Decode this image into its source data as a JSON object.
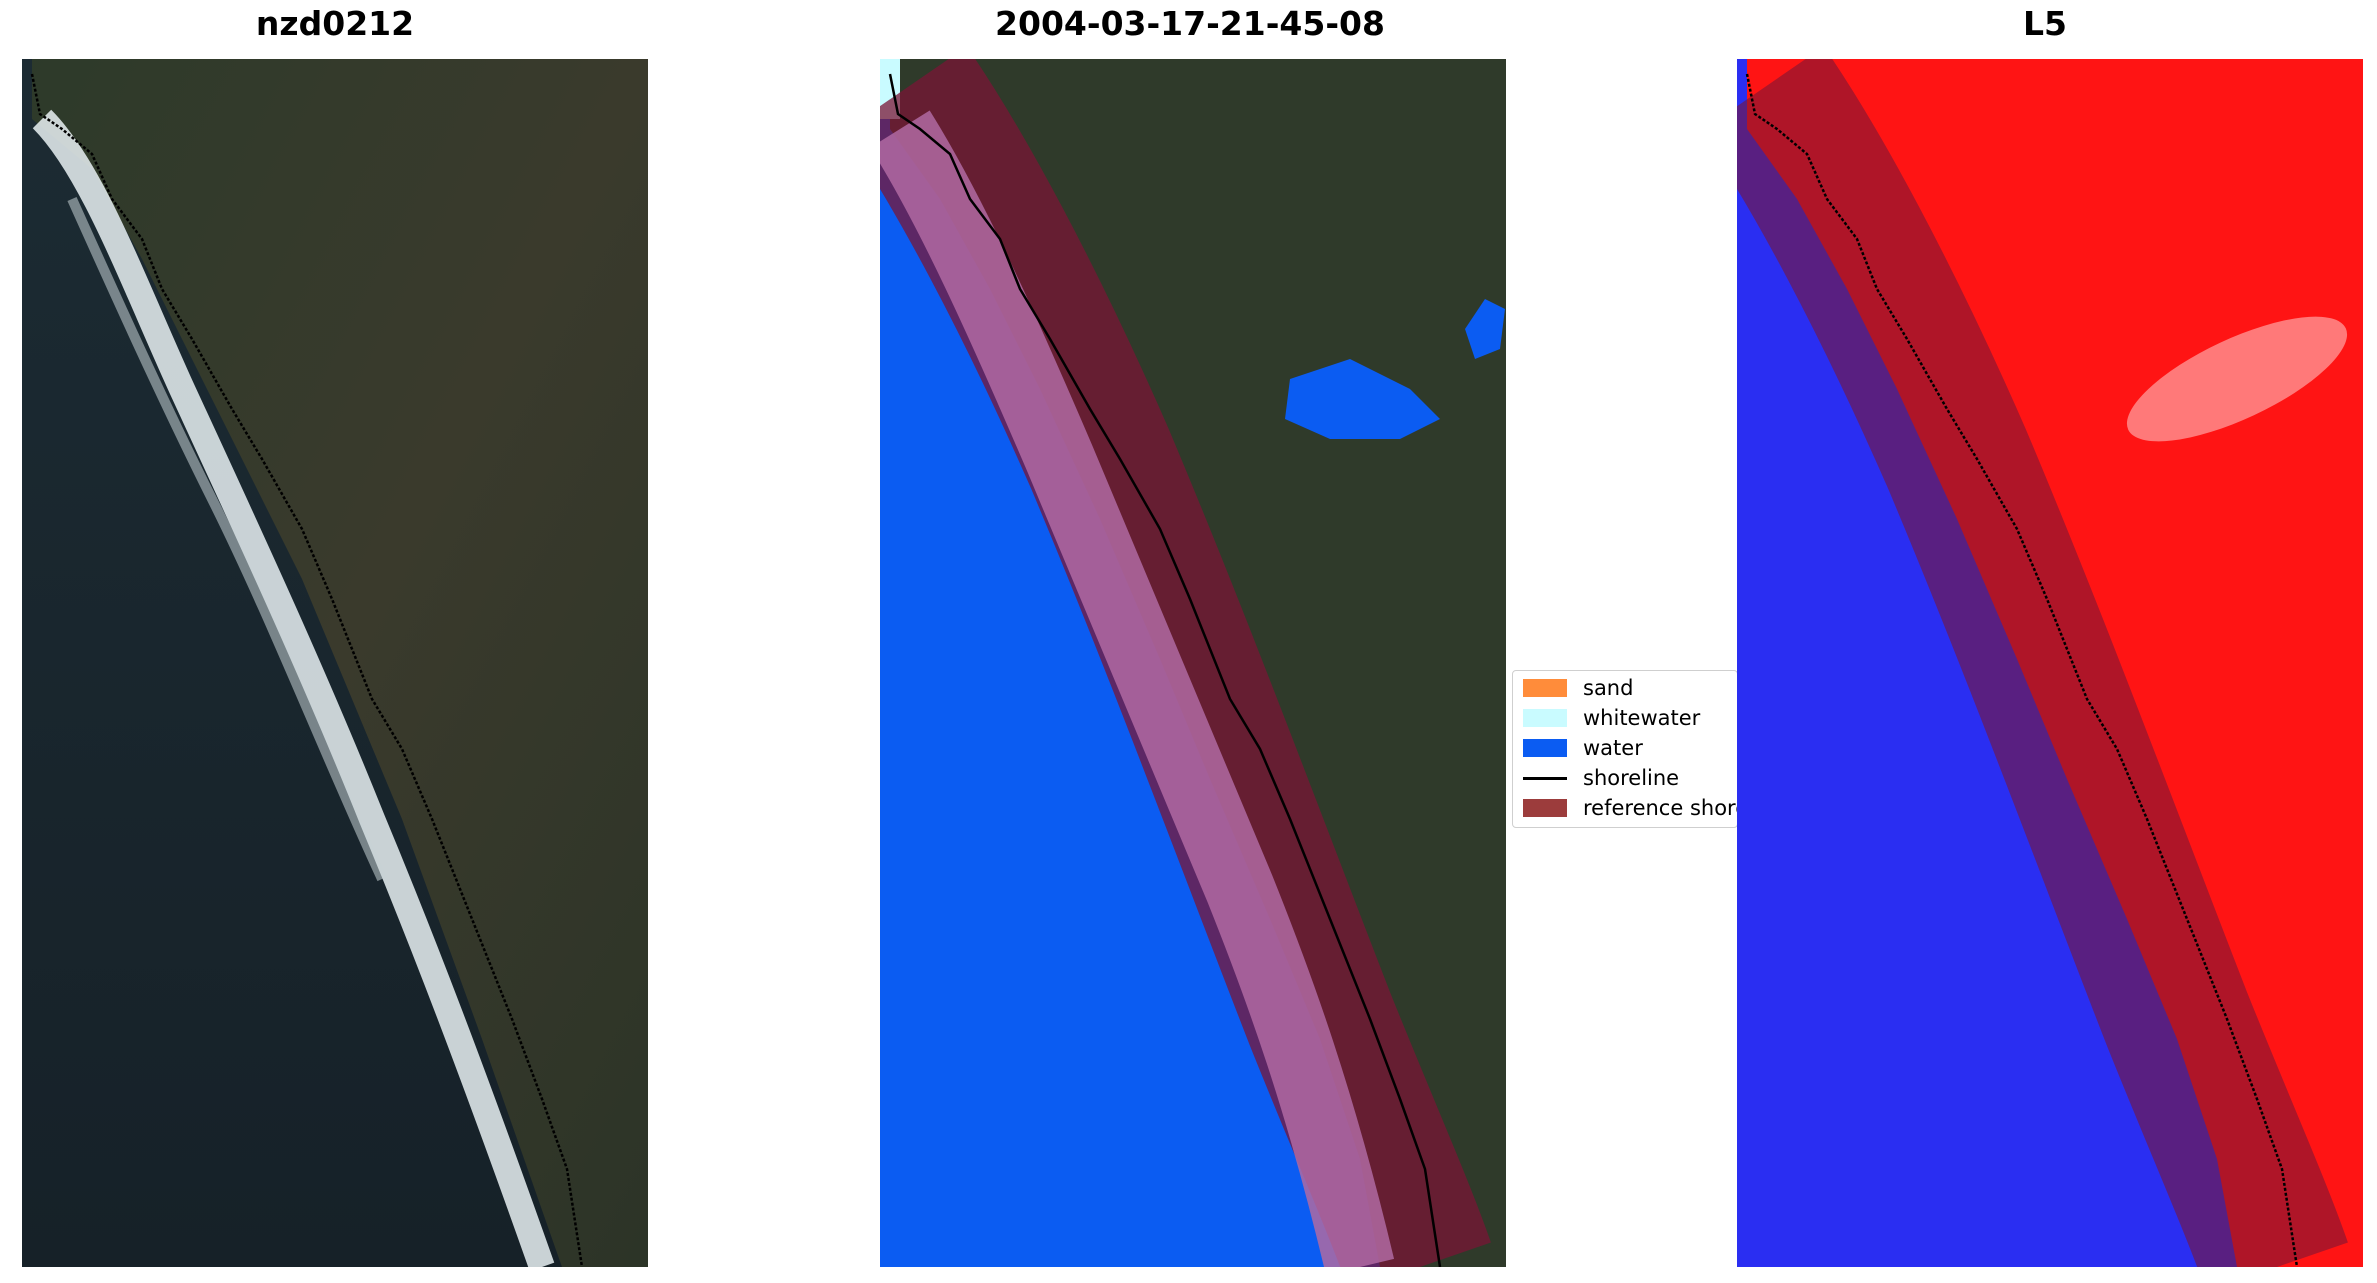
{
  "figure": {
    "panels": [
      {
        "title": "nzd0212"
      },
      {
        "title": "2004-03-17-21-45-08"
      },
      {
        "title": "L5"
      }
    ]
  },
  "legend": {
    "items": [
      {
        "label": "sand",
        "kind": "patch",
        "color": "#ff8c3a"
      },
      {
        "label": "whitewater",
        "kind": "patch",
        "color": "#c9fbff"
      },
      {
        "label": "water",
        "kind": "patch",
        "color": "#0b5cf2"
      },
      {
        "label": "shoreline",
        "kind": "line",
        "color": "#000000"
      },
      {
        "label": "reference shoreline buffer",
        "kind": "patch",
        "color": "#8b1a1a"
      }
    ]
  },
  "colors": {
    "ocean_rgb": "#17252f",
    "land_rgb": "#2f3a2a",
    "surf": "#e8eef0",
    "water_class": "#0b5cf2",
    "buffer": "#7a1535",
    "index_positive": "#ff1010",
    "index_negative": "#2020f0"
  }
}
